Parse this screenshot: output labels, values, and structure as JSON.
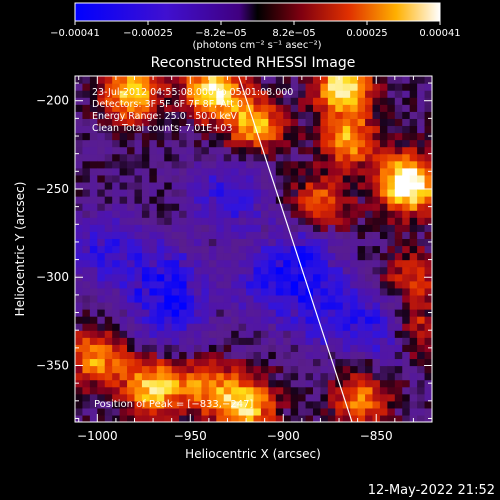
{
  "chart_data": {
    "type": "heatmap",
    "title": "Reconstructed RHESSI Image",
    "xlabel": "Heliocentric X (arcsec)",
    "ylabel": "Heliocentric Y (arcsec)",
    "xlim": [
      -1012,
      -820
    ],
    "ylim": [
      -382,
      -186
    ],
    "x_ticks": [
      -1000,
      -950,
      -900,
      -850
    ],
    "x_tick_labels": [
      "−1000",
      "−950",
      "−900",
      "−850"
    ],
    "y_ticks": [
      -350,
      -300,
      -250,
      -200
    ],
    "y_tick_labels": [
      "−350",
      "−300",
      "−250",
      "−200"
    ],
    "colorbar": {
      "colormap": "blue-purple-red-yellow-white",
      "range": [
        -0.00041,
        0.00041
      ],
      "tick_labels": [
        "−0.00041",
        "−0.00025",
        "−8.2e−05",
        "8.2e−05",
        "0.00025",
        "0.00041"
      ],
      "units_label": "(photons cm⁻² s⁻¹ asec⁻²)"
    },
    "info_lines": [
      "23-Jul-2012 04:55:08.000 to 05:01:08.000",
      "Detectors: 3F 5F 6F 7F 8F, Att 0",
      "Energy Range: 25.0 - 50.0 keV",
      "Clean    Total counts: 7.01E+03"
    ],
    "peak_label": "Position of Peak = [−833,−247]",
    "peak": {
      "x": -833,
      "y": -247
    },
    "limb_line": [
      [
        -924,
        -186
      ],
      [
        -863,
        -382
      ]
    ],
    "bright_regions": [
      {
        "x": -833,
        "y": -247,
        "intensity": 1.0
      },
      {
        "x": -982,
        "y": -196,
        "intensity": 0.7
      },
      {
        "x": -938,
        "y": -194,
        "intensity": 0.8
      },
      {
        "x": -915,
        "y": -213,
        "intensity": 0.6
      },
      {
        "x": -868,
        "y": -192,
        "intensity": 0.75
      },
      {
        "x": -865,
        "y": -222,
        "intensity": 0.55
      },
      {
        "x": -880,
        "y": -258,
        "intensity": 0.45
      },
      {
        "x": -1000,
        "y": -345,
        "intensity": 0.55
      },
      {
        "x": -970,
        "y": -362,
        "intensity": 0.7
      },
      {
        "x": -920,
        "y": -372,
        "intensity": 0.7
      },
      {
        "x": -942,
        "y": -362,
        "intensity": 0.45
      },
      {
        "x": -858,
        "y": -368,
        "intensity": 0.5
      },
      {
        "x": -830,
        "y": -330,
        "intensity": 0.45
      },
      {
        "x": -830,
        "y": -300,
        "intensity": 0.35
      }
    ],
    "colors": {
      "background": "#000000",
      "axes": "#ffffff",
      "limb": "#ffffff"
    }
  },
  "footer": {
    "timestamp": "12-May-2022 21:52"
  }
}
